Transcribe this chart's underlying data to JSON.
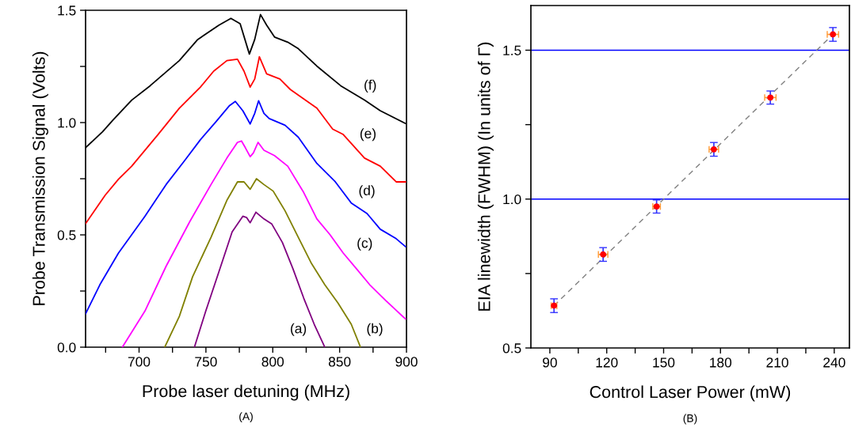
{
  "chart_data": [
    {
      "type": "line",
      "xlabel": "Probe laser detuning (MHz)",
      "ylabel": "Probe Transmission Signal (Volts)",
      "xlim": [
        660,
        900
      ],
      "ylim": [
        0,
        1.5
      ],
      "xticks": [
        {
          "value": 675,
          "label": null
        },
        700,
        {
          "value": 725,
          "label": null
        },
        750,
        {
          "value": 775,
          "label": null
        },
        800,
        {
          "value": 825,
          "label": null
        },
        850,
        {
          "value": 875,
          "label": null
        },
        900
      ],
      "yticks": [
        {
          "value": 0,
          "label": "0.0"
        },
        {
          "value": 0.25,
          "label": null
        },
        {
          "value": 0.5,
          "label": "0.5"
        },
        {
          "value": 0.75,
          "label": null
        },
        {
          "value": 1,
          "label": "1.0"
        },
        {
          "value": 1.25,
          "label": null
        },
        {
          "value": 1.5,
          "label": "1.5"
        }
      ],
      "series": [
        {
          "name": "(a)",
          "color": "#800080",
          "x": [
            741.4,
            749.9,
            759.8,
            769.6,
            777.6,
            780.5,
            783.1,
            787.4,
            793.4,
            799.3,
            807.2,
            815.1,
            823.1,
            831.0,
            838.9
          ],
          "values": [
            0,
            0.161,
            0.337,
            0.513,
            0.583,
            0.577,
            0.554,
            0.601,
            0.571,
            0.548,
            0.466,
            0.349,
            0.219,
            0.102,
            0
          ]
        },
        {
          "name": "(b)",
          "color": "#808000",
          "x": [
            719.2,
            730.1,
            740.0,
            753.8,
            765.7,
            773.6,
            778.5,
            783.1,
            787.8,
            793.4,
            800.3,
            809.2,
            819.1,
            829.0,
            838.9,
            848.8,
            858.7,
            865.6
          ],
          "values": [
            0,
            0.137,
            0.313,
            0.489,
            0.654,
            0.736,
            0.736,
            0.703,
            0.75,
            0.724,
            0.695,
            0.607,
            0.489,
            0.372,
            0.278,
            0.196,
            0.102,
            0
          ]
        },
        {
          "name": "(c)",
          "color": "#ff00ff",
          "x": [
            687.5,
            704.4,
            720.2,
            738.0,
            753.8,
            765.7,
            773.6,
            776.6,
            779.5,
            783.1,
            785.5,
            789.0,
            793.4,
            801.3,
            811.2,
            823.1,
            833.0,
            842.8,
            852.7,
            862.6,
            872.5,
            884.4,
            899.2
          ],
          "values": [
            0,
            0.161,
            0.36,
            0.56,
            0.724,
            0.842,
            0.912,
            0.918,
            0.888,
            0.848,
            0.865,
            0.912,
            0.877,
            0.853,
            0.806,
            0.689,
            0.571,
            0.501,
            0.419,
            0.349,
            0.278,
            0.208,
            0.126
          ]
        },
        {
          "name": "(d)",
          "color": "#0000ff",
          "x": [
            660.0,
            670.7,
            684.6,
            704.4,
            720.2,
            734.0,
            745.9,
            757.8,
            767.7,
            772.0,
            777.6,
            783.1,
            786.5,
            789.4,
            793.4,
            797.3,
            809.2,
            819.1,
            833.0,
            846.8,
            858.7,
            870.5,
            880.4,
            892.3,
            899.2
          ],
          "values": [
            0.149,
            0.278,
            0.419,
            0.583,
            0.724,
            0.83,
            0.924,
            1.006,
            1.076,
            1.094,
            1.053,
            0.994,
            1.041,
            1.097,
            1.041,
            1.018,
            0.988,
            0.935,
            0.818,
            0.736,
            0.642,
            0.595,
            0.525,
            0.483,
            0.448
          ]
        },
        {
          "name": "(e)",
          "color": "#ff0000",
          "x": [
            660.0,
            674.7,
            684.6,
            694.5,
            714.2,
            730.1,
            745.9,
            755.8,
            765.7,
            773.6,
            778.5,
            783.1,
            786.5,
            790.0,
            795.4,
            805.3,
            813.2,
            823.1,
            833.0,
            844.8,
            852.7,
            868.6,
            880.4,
            892.3,
            899.2
          ],
          "values": [
            0.55,
            0.677,
            0.748,
            0.806,
            0.947,
            1.064,
            1.158,
            1.229,
            1.276,
            1.282,
            1.229,
            1.158,
            1.194,
            1.293,
            1.217,
            1.194,
            1.147,
            1.106,
            1.064,
            0.971,
            0.947,
            0.842,
            0.806,
            0.736,
            0.736
          ]
        },
        {
          "name": "(f)",
          "color": "#000000",
          "x": [
            660.0,
            672.7,
            680.6,
            694.5,
            708.3,
            730.1,
            743.9,
            759.8,
            768.7,
            775.6,
            782.5,
            786.5,
            790.8,
            795.4,
            801.3,
            811.2,
            819.1,
            832.9,
            850.8,
            868.6,
            880.4,
            899.2
          ],
          "values": [
            0.888,
            0.959,
            1.012,
            1.1,
            1.164,
            1.276,
            1.37,
            1.434,
            1.464,
            1.44,
            1.305,
            1.37,
            1.481,
            1.434,
            1.381,
            1.358,
            1.329,
            1.252,
            1.164,
            1.1,
            1.053,
            0.996
          ]
        }
      ],
      "annotations": [
        "(A)"
      ]
    },
    {
      "type": "scatter",
      "xlabel": "Control Laser Power (mW)",
      "ylabel": "EIA linewidth (FWHM) (In units of Γ)",
      "xlim": [
        80,
        248
      ],
      "ylim": [
        0.5,
        1.65
      ],
      "xticks": [
        90,
        {
          "value": 105,
          "label": null
        },
        120,
        {
          "value": 135,
          "label": null
        },
        150,
        {
          "value": 165,
          "label": null
        },
        180,
        {
          "value": 195,
          "label": null
        },
        210,
        {
          "value": 225,
          "label": null
        },
        240
      ],
      "yticks": [
        0.5,
        {
          "value": 0.75,
          "label": null
        },
        {
          "value": 1,
          "label": "1.0"
        },
        {
          "value": 1.25,
          "label": null
        },
        1.5
      ],
      "series": [
        {
          "type": "line",
          "line_style": "dashed",
          "color": "#808080",
          "x": [
            92.2,
            239.3
          ],
          "values": [
            0.642,
            1.553
          ]
        },
        {
          "type": "scatter",
          "marker": "circle",
          "color": "#ff0000",
          "x": [
            92.2,
            118.1,
            146.3,
            176.5,
            206.3,
            239.3
          ],
          "values": [
            0.642,
            0.814,
            0.975,
            1.167,
            1.341,
            1.553
          ],
          "errors": [
            0.023,
            0.023,
            0.022,
            0.023,
            0.022,
            0.023
          ],
          "xerrors": [
            1.5,
            2.5,
            2,
            2.5,
            3,
            3
          ]
        }
      ],
      "ref_lines": [
        {
          "axis": "y",
          "value": 1.0,
          "color": "#0000ff"
        },
        {
          "axis": "y",
          "value": 1.5,
          "color": "#0000ff"
        }
      ],
      "annotations": [
        "(B)"
      ]
    }
  ]
}
